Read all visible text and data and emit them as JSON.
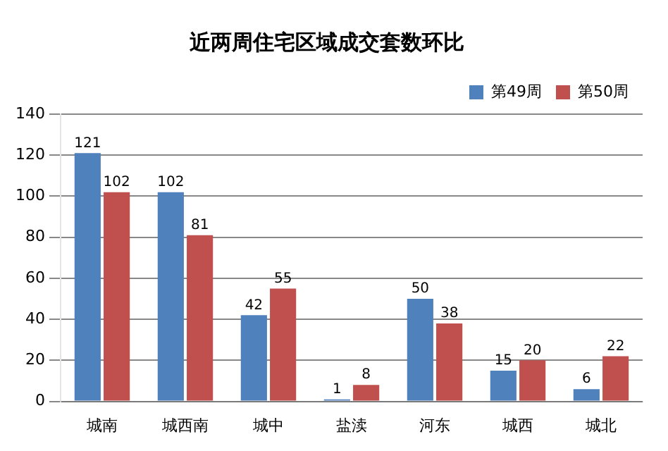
{
  "chart_data": {
    "type": "bar",
    "title": "近两周住宅区域成交套数环比",
    "categories": [
      "城南",
      "城西南",
      "城中",
      "盐渎",
      "河东",
      "城西",
      "城北"
    ],
    "series": [
      {
        "name": "第49周",
        "color": "#4f81bd",
        "values": [
          121,
          102,
          42,
          1,
          50,
          15,
          6
        ]
      },
      {
        "name": "第50周",
        "color": "#c0504d",
        "values": [
          102,
          81,
          55,
          8,
          38,
          20,
          22
        ]
      }
    ],
    "ylim": [
      0,
      140
    ],
    "yticks": [
      0,
      20,
      40,
      60,
      80,
      100,
      120,
      140
    ],
    "grid": "y",
    "legend": "top right",
    "data_labels": true
  }
}
